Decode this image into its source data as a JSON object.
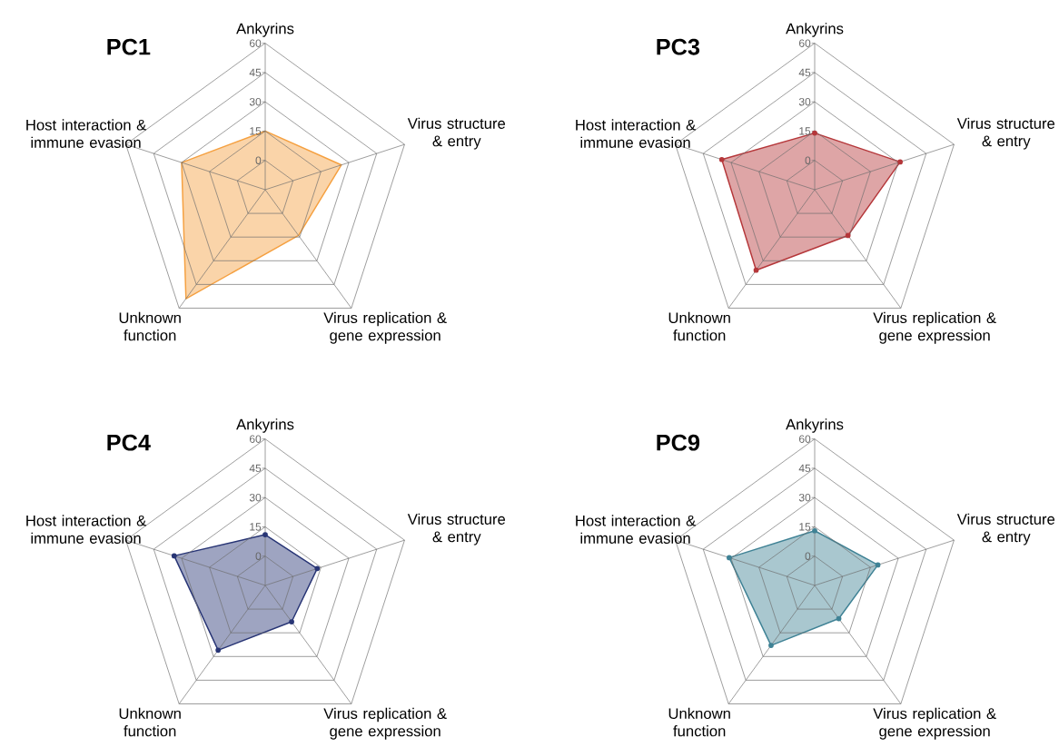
{
  "chart_data": [
    {
      "type": "radar",
      "title": "PC1",
      "categories": [
        "Ankyrins",
        "Virus structure & entry",
        "Virus replication & gene expression",
        "Unknown function",
        "Host interaction & immune evasion"
      ],
      "series": [
        {
          "color": "#f5a040",
          "values": [
            15,
            26,
            14,
            54,
            30
          ]
        }
      ],
      "ylim": [
        -15,
        60
      ],
      "yticks": [
        0,
        15,
        30,
        45,
        60
      ],
      "grid": true,
      "marker": "none"
    },
    {
      "type": "radar",
      "title": "PC3",
      "categories": [
        "Ankyrins",
        "Virus structure & entry",
        "Virus replication & gene expression",
        "Unknown function",
        "Host interaction & immune evasion"
      ],
      "series": [
        {
          "color": "#b5373a",
          "values": [
            14,
            31,
            14,
            36,
            35
          ]
        }
      ],
      "ylim": [
        -15,
        60
      ],
      "yticks": [
        0,
        15,
        30,
        45,
        60
      ],
      "grid": true,
      "marker": "circle"
    },
    {
      "type": "radar",
      "title": "PC4",
      "categories": [
        "Ankyrins",
        "Virus structure & entry",
        "Virus replication & gene expression",
        "Unknown function",
        "Host interaction & immune evasion"
      ],
      "series": [
        {
          "color": "#283575",
          "values": [
            11,
            13,
            8,
            26,
            34
          ]
        }
      ],
      "ylim": [
        -15,
        60
      ],
      "yticks": [
        0,
        15,
        30,
        45,
        60
      ],
      "grid": true,
      "marker": "circle"
    },
    {
      "type": "radar",
      "title": "PC9",
      "categories": [
        "Ankyrins",
        "Virus structure & entry",
        "Virus replication & gene expression",
        "Unknown function",
        "Host interaction & immune evasion"
      ],
      "series": [
        {
          "color": "#3f8295",
          "values": [
            13,
            19,
            6,
            23,
            31
          ]
        }
      ],
      "ylim": [
        -15,
        60
      ],
      "yticks": [
        0,
        15,
        30,
        45,
        60
      ],
      "grid": true,
      "marker": "circle"
    }
  ]
}
